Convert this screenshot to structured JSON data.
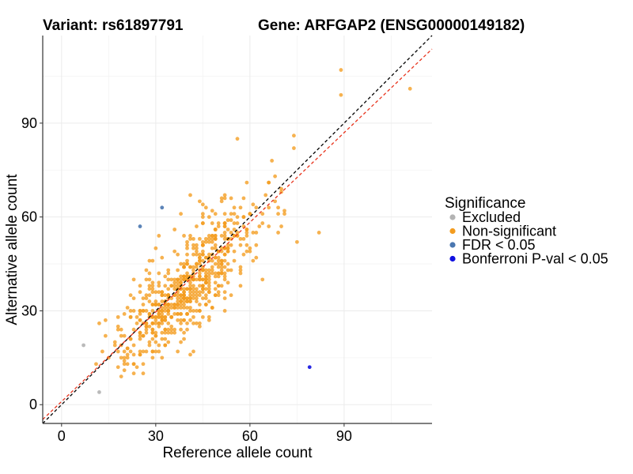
{
  "chart_data": {
    "type": "scatter",
    "title_left": "Variant: rs61897791",
    "title_right": "Gene: ARFGAP2 (ENSG00000149182)",
    "xlabel": "Reference allele count",
    "ylabel": "Alternative allele count",
    "xlim": [
      -6,
      118
    ],
    "ylim": [
      -6,
      118
    ],
    "xticks": [
      0,
      30,
      60,
      90
    ],
    "yticks": [
      0,
      30,
      60,
      90
    ],
    "reference_lines": [
      {
        "name": "identity",
        "slope": 1,
        "intercept": 0,
        "color": "#000000",
        "style": "dashed"
      },
      {
        "name": "fit",
        "slope": 0.955,
        "intercept": 1,
        "color": "#e8331c",
        "style": "dashed"
      }
    ],
    "legend": {
      "title": "Significance",
      "position": "right",
      "entries": [
        {
          "label": "Excluded",
          "color": "#b3b3b3"
        },
        {
          "label": "Non-significant",
          "color": "#f39c1f"
        },
        {
          "label": "FDR < 0.05",
          "color": "#4a77b0"
        },
        {
          "label": "Bonferroni P-val < 0.05",
          "color": "#1010e0"
        }
      ]
    },
    "series": [
      {
        "name": "Excluded",
        "color": "#b3b3b3",
        "points": [
          [
            7,
            19
          ],
          [
            12,
            4
          ]
        ]
      },
      {
        "name": "FDR < 0.05",
        "color": "#4a77b0",
        "points": [
          [
            25,
            57
          ],
          [
            32,
            63
          ]
        ]
      },
      {
        "name": "Bonferroni P-val < 0.05",
        "color": "#1010e0",
        "points": [
          [
            79,
            12
          ]
        ]
      },
      {
        "name": "Non-significant",
        "color": "#f39c1f",
        "cloud": {
          "n": 620,
          "seed": 7,
          "ref_center": 40,
          "ref_sd": 10,
          "ratio": 0.96,
          "noise_sd": 7.5,
          "x_range": [
            9,
            78
          ],
          "y_range": [
            9,
            72
          ]
        },
        "points": [
          [
            89,
            107
          ],
          [
            89,
            99
          ],
          [
            111,
            101
          ],
          [
            74,
            86
          ],
          [
            74,
            82
          ],
          [
            56,
            85
          ],
          [
            67,
            78
          ],
          [
            82,
            55
          ],
          [
            75,
            52
          ],
          [
            69,
            55
          ],
          [
            71,
            62
          ],
          [
            65,
            67
          ],
          [
            12,
            26
          ],
          [
            11,
            13
          ],
          [
            13,
            17
          ],
          [
            15,
            15
          ],
          [
            17,
            19
          ],
          [
            18,
            25
          ],
          [
            20,
            29
          ],
          [
            22,
            35
          ],
          [
            25,
            38
          ],
          [
            27,
            43
          ],
          [
            28,
            46
          ],
          [
            30,
            50
          ],
          [
            41,
            67
          ],
          [
            44,
            65
          ],
          [
            47,
            60
          ],
          [
            53,
            59
          ],
          [
            55,
            46
          ],
          [
            60,
            49
          ],
          [
            62,
            51
          ],
          [
            63,
            57
          ],
          [
            58,
            60
          ],
          [
            66,
            71
          ],
          [
            68,
            73
          ],
          [
            70,
            69
          ],
          [
            23,
            16
          ],
          [
            26,
            17
          ],
          [
            30,
            17
          ],
          [
            33,
            19
          ],
          [
            38,
            20
          ],
          [
            36,
            23
          ],
          [
            42,
            26
          ],
          [
            47,
            28
          ],
          [
            52,
            30
          ],
          [
            50,
            35
          ],
          [
            57,
            38
          ],
          [
            64,
            40
          ]
        ]
      }
    ]
  }
}
